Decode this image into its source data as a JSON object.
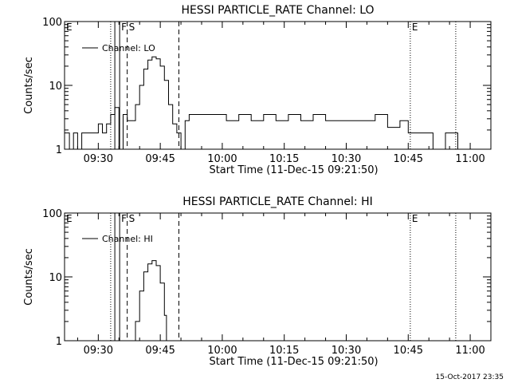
{
  "footer_date": "15-Oct-2017 23:35",
  "chart_data": [
    {
      "type": "line",
      "title": "HESSI PARTICLE_RATE Channel: LO",
      "xlabel": "Start Time (11-Dec-15 09:21:50)",
      "ylabel": "Counts/sec",
      "y_scale": "log",
      "ylim": [
        1,
        100
      ],
      "xlim": [
        "09:21:50",
        "11:05:00"
      ],
      "x_ticks": [
        "09:30",
        "09:45",
        "10:00",
        "10:15",
        "10:30",
        "10:45",
        "11:00"
      ],
      "y_ticks": [
        "1",
        "10",
        "100"
      ],
      "legend": {
        "position": "top-left",
        "entries": [
          "Channel: LO"
        ]
      },
      "markers": [
        {
          "label": "E",
          "time": "09:21:50",
          "style": "dotted"
        },
        {
          "label": "",
          "time": "09:33:00",
          "style": "dotted"
        },
        {
          "label": "",
          "time": "09:34:00",
          "style": "solid"
        },
        {
          "label": "F",
          "time": "09:35:10",
          "style": "solid"
        },
        {
          "label": "S",
          "time": "09:37:00",
          "style": "dashed"
        },
        {
          "label": "",
          "time": "09:49:30",
          "style": "dashed"
        },
        {
          "label": "E",
          "time": "10:45:30",
          "style": "dotted"
        },
        {
          "label": "",
          "time": "10:56:30",
          "style": "dotted"
        }
      ],
      "series": [
        {
          "name": "Channel: LO",
          "x": [
            "09:21:50",
            "09:23:00",
            "09:24:00",
            "09:25:00",
            "09:26:00",
            "09:27:00",
            "09:28:00",
            "09:29:00",
            "09:30:00",
            "09:31:00",
            "09:32:00",
            "09:33:00",
            "09:34:00",
            "09:35:00",
            "09:36:00",
            "09:37:00",
            "09:38:00",
            "09:39:00",
            "09:40:00",
            "09:41:00",
            "09:42:00",
            "09:43:00",
            "09:44:00",
            "09:45:00",
            "09:46:00",
            "09:47:00",
            "09:48:00",
            "09:49:00",
            "09:50:00",
            "09:51:00",
            "09:52:00",
            "09:55:00",
            "09:58:00",
            "10:01:00",
            "10:04:00",
            "10:07:00",
            "10:10:00",
            "10:13:00",
            "10:16:00",
            "10:19:00",
            "10:22:00",
            "10:25:00",
            "10:28:00",
            "10:31:00",
            "10:34:00",
            "10:37:00",
            "10:40:00",
            "10:43:00",
            "10:45:00",
            "10:48:00",
            "10:51:00",
            "10:54:00",
            "10:57:00",
            "11:00:00"
          ],
          "y": [
            1.8,
            1.0,
            1.8,
            1.0,
            1.8,
            1.8,
            1.8,
            1.8,
            2.5,
            1.8,
            2.5,
            3.5,
            4.5,
            1.0,
            3.5,
            2.8,
            2.8,
            5.0,
            10.0,
            18.0,
            25.0,
            28.0,
            26.0,
            20.0,
            12.0,
            5.0,
            2.5,
            1.8,
            1.0,
            2.8,
            3.5,
            3.5,
            3.5,
            2.8,
            3.5,
            2.8,
            3.5,
            2.8,
            3.5,
            2.8,
            3.5,
            2.8,
            2.8,
            2.8,
            2.8,
            3.5,
            2.2,
            2.8,
            1.8,
            1.8,
            1.0,
            1.8,
            1.0,
            1.0
          ]
        }
      ]
    },
    {
      "type": "line",
      "title": "HESSI PARTICLE_RATE Channel: HI",
      "xlabel": "Start Time (11-Dec-15 09:21:50)",
      "ylabel": "Counts/sec",
      "y_scale": "log",
      "ylim": [
        1,
        100
      ],
      "xlim": [
        "09:21:50",
        "11:05:00"
      ],
      "x_ticks": [
        "09:30",
        "09:45",
        "10:00",
        "10:15",
        "10:30",
        "10:45",
        "11:00"
      ],
      "y_ticks": [
        "1",
        "10",
        "100"
      ],
      "legend": {
        "position": "top-left",
        "entries": [
          "Channel: HI"
        ]
      },
      "markers": [
        {
          "label": "E",
          "time": "09:21:50",
          "style": "dotted"
        },
        {
          "label": "",
          "time": "09:33:00",
          "style": "dotted"
        },
        {
          "label": "",
          "time": "09:34:00",
          "style": "solid"
        },
        {
          "label": "F",
          "time": "09:35:10",
          "style": "solid"
        },
        {
          "label": "S",
          "time": "09:37:00",
          "style": "dashed"
        },
        {
          "label": "",
          "time": "09:49:30",
          "style": "dashed"
        },
        {
          "label": "E",
          "time": "10:45:30",
          "style": "dotted"
        },
        {
          "label": "",
          "time": "10:56:30",
          "style": "dotted"
        }
      ],
      "series": [
        {
          "name": "Channel: HI",
          "x": [
            "09:38:30",
            "09:39:00",
            "09:40:00",
            "09:41:00",
            "09:42:00",
            "09:43:00",
            "09:44:00",
            "09:45:00",
            "09:46:00",
            "09:46:30"
          ],
          "y": [
            1.0,
            2.0,
            6.0,
            12.0,
            16.0,
            18.0,
            15.0,
            8.0,
            2.5,
            1.0
          ]
        }
      ]
    }
  ]
}
